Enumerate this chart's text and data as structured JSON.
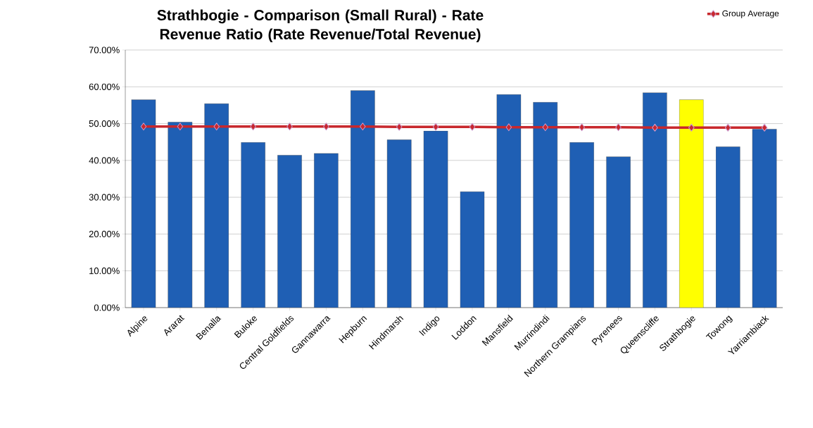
{
  "chart_data": {
    "type": "bar",
    "title": "Strathbogie - Comparison (Small Rural) - Rate Revenue Ratio (Rate Revenue/Total Revenue)",
    "categories": [
      "Alpine",
      "Ararat",
      "Benalla",
      "Buloke",
      "Central Goldfields",
      "Gannawarra",
      "Hepburn",
      "Hindmarsh",
      "Indigo",
      "Loddon",
      "Mansfield",
      "Murrindindi",
      "Northern Grampians",
      "Pyrenees",
      "Queenscliffe",
      "Strathbogie",
      "Towong",
      "Yarriambiack"
    ],
    "series": [
      {
        "colors": [
          "#1f5fb4",
          "#1f5fb4",
          "#1f5fb4",
          "#1f5fb4",
          "#1f5fb4",
          "#1f5fb4",
          "#1f5fb4",
          "#1f5fb4",
          "#1f5fb4",
          "#1f5fb4",
          "#1f5fb4",
          "#1f5fb4",
          "#1f5fb4",
          "#1f5fb4",
          "#1f5fb4",
          "#ffff00",
          "#1f5fb4",
          "#1f5fb4"
        ],
        "values": [
          56.5,
          50.4,
          55.4,
          44.9,
          41.4,
          41.9,
          59.0,
          45.6,
          48.0,
          31.5,
          57.9,
          55.8,
          44.9,
          41.0,
          58.4,
          56.5,
          43.7,
          48.5
        ]
      },
      {
        "type": "line",
        "name": "Group Average",
        "color": "#c8282d",
        "marker": "diamond",
        "values": [
          49.2,
          49.2,
          49.2,
          49.2,
          49.2,
          49.2,
          49.2,
          49.1,
          49.1,
          49.1,
          49.0,
          49.0,
          49.0,
          49.0,
          48.9,
          48.9,
          48.9,
          48.9
        ]
      }
    ],
    "ylim": [
      0,
      70
    ],
    "yticks": [
      {
        "value": 0,
        "label": "0.00%"
      },
      {
        "value": 10,
        "label": "10.00%"
      },
      {
        "value": 20,
        "label": "20.00%"
      },
      {
        "value": 30,
        "label": "30.00%"
      },
      {
        "value": 40,
        "label": "40.00%"
      },
      {
        "value": 50,
        "label": "50.00%"
      },
      {
        "value": 60,
        "label": "60.00%"
      },
      {
        "value": 70,
        "label": "70.00%"
      }
    ],
    "grid": "y",
    "legend": "top right"
  }
}
